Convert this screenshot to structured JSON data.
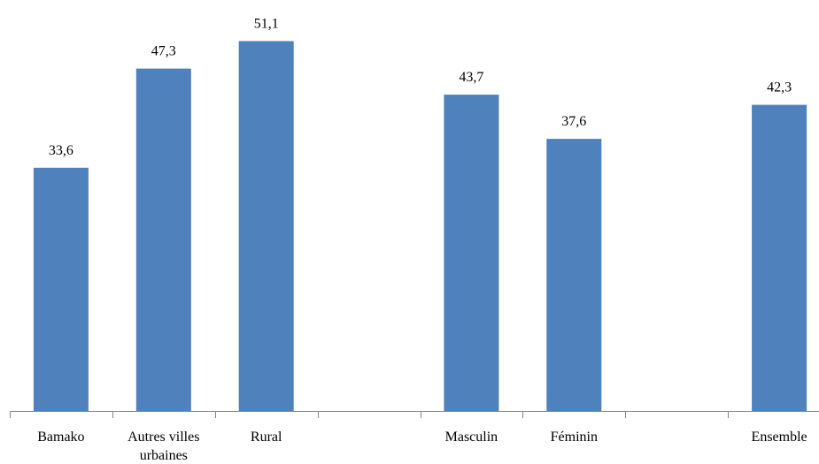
{
  "chart_data": {
    "type": "bar",
    "categories": [
      [
        "Bamako"
      ],
      [
        "Autres villes",
        "urbaines"
      ],
      [
        "Rural"
      ],
      [
        ""
      ],
      [
        "Masculin"
      ],
      [
        "Féminin"
      ],
      [
        ""
      ],
      [
        "Ensemble"
      ]
    ],
    "values": [
      33.6,
      47.3,
      51.1,
      null,
      43.7,
      37.6,
      null,
      42.3
    ],
    "data_labels": [
      "33,6",
      "47,3",
      "51,1",
      "",
      "43,7",
      "37,6",
      "",
      "42,3"
    ],
    "title": "",
    "xlabel": "",
    "ylabel": "",
    "ylim": [
      0,
      60
    ],
    "grid": false,
    "legend": "none",
    "bar_color": "#4f81bd",
    "axis_color": "#868686"
  }
}
